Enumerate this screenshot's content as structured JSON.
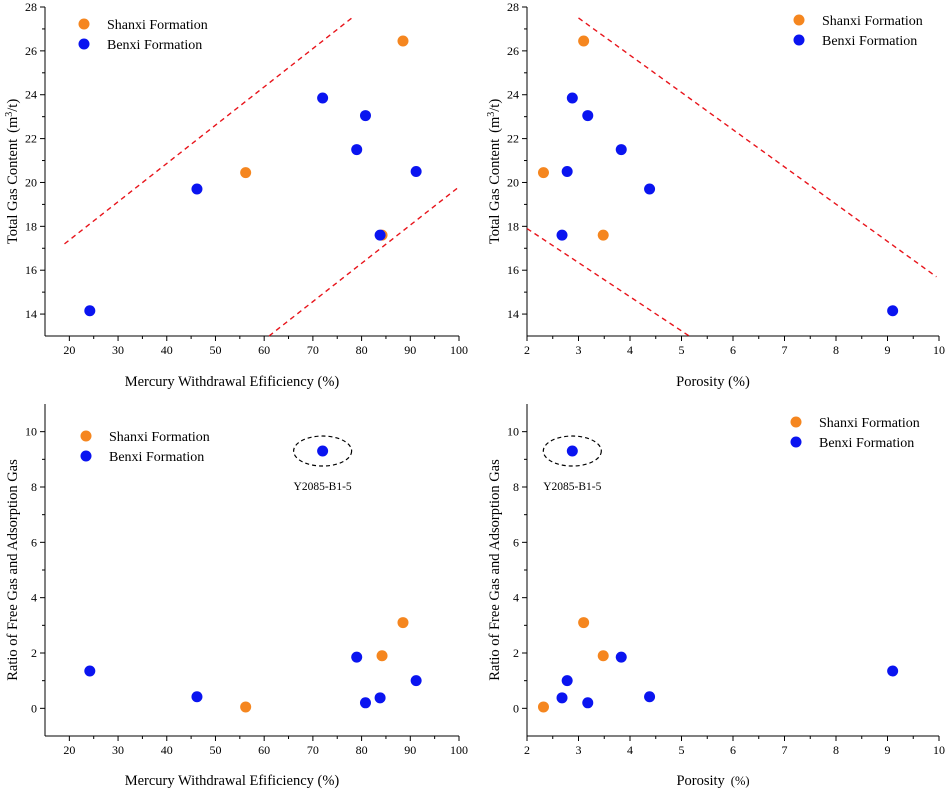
{
  "chart_data": [
    {
      "id": "tl",
      "type": "scatter",
      "xlabel": "Mercury Withdrawal Efificiency (%)",
      "ylabel": "Total Gas Content",
      "ylabel_unit_prefix": "(m",
      "ylabel_unit_exp": "3",
      "ylabel_unit_suffix": "/t)",
      "xlim": [
        15,
        100
      ],
      "ylim": [
        13,
        28
      ],
      "xticks": [
        20,
        30,
        40,
        50,
        60,
        70,
        80,
        90,
        100
      ],
      "yticks": [
        14,
        16,
        18,
        20,
        22,
        24,
        26,
        28
      ],
      "legend": "top-left",
      "series": [
        {
          "name": "Shanxi Formation",
          "color": "#f5861f",
          "points": [
            [
              88.5,
              26.45
            ],
            [
              56.2,
              20.45
            ],
            [
              84.2,
              17.6
            ]
          ]
        },
        {
          "name": "Benxi Formation",
          "color": "#0a14f0",
          "points": [
            [
              72,
              23.85
            ],
            [
              80.8,
              23.05
            ],
            [
              79,
              21.5
            ],
            [
              91.2,
              20.5
            ],
            [
              46.2,
              19.7
            ],
            [
              83.8,
              17.6
            ],
            [
              24.2,
              14.15
            ]
          ]
        }
      ],
      "trend_lines": [
        [
          [
            19,
            17.2
          ],
          [
            78,
            27.5
          ]
        ],
        [
          [
            61,
            13
          ],
          [
            100,
            19.8
          ]
        ]
      ]
    },
    {
      "id": "tr",
      "type": "scatter",
      "xlabel": "Porosity (%)",
      "ylabel": "Total Gas Content",
      "ylabel_unit_prefix": "(m",
      "ylabel_unit_exp": "3",
      "ylabel_unit_suffix": "/t)",
      "xlim": [
        2,
        10
      ],
      "ylim": [
        13,
        28
      ],
      "xticks": [
        2,
        3,
        4,
        5,
        6,
        7,
        8,
        9,
        10
      ],
      "yticks": [
        14,
        16,
        18,
        20,
        22,
        24,
        26,
        28
      ],
      "legend": "top-right",
      "series": [
        {
          "name": "Shanxi Formation",
          "color": "#f5861f",
          "points": [
            [
              3.1,
              26.45
            ],
            [
              2.32,
              20.45
            ],
            [
              3.48,
              17.6
            ]
          ]
        },
        {
          "name": "Benxi Formation",
          "color": "#0a14f0",
          "points": [
            [
              2.88,
              23.85
            ],
            [
              3.18,
              23.05
            ],
            [
              3.83,
              21.5
            ],
            [
              2.78,
              20.5
            ],
            [
              4.38,
              19.7
            ],
            [
              2.68,
              17.6
            ],
            [
              9.1,
              14.15
            ]
          ]
        }
      ],
      "trend_lines": [
        [
          [
            3.0,
            27.5
          ],
          [
            9.95,
            15.7
          ]
        ],
        [
          [
            2.0,
            17.9
          ],
          [
            5.15,
            13
          ]
        ]
      ]
    },
    {
      "id": "bl",
      "type": "scatter",
      "xlabel": "Mercury Withdrawal Efificiency (%)",
      "ylabel": "Ratio of Free Gas and Adsorption Gas",
      "xlim": [
        15,
        100
      ],
      "ylim": [
        -1,
        11
      ],
      "xticks": [
        20,
        30,
        40,
        50,
        60,
        70,
        80,
        90,
        100
      ],
      "yticks": [
        0,
        2,
        4,
        6,
        8,
        10
      ],
      "legend": "top-left",
      "series": [
        {
          "name": "Shanxi Formation",
          "color": "#f5861f",
          "points": [
            [
              88.5,
              3.1
            ],
            [
              84.2,
              1.9
            ],
            [
              56.2,
              0.05
            ]
          ]
        },
        {
          "name": "Benxi Formation",
          "color": "#0a14f0",
          "points": [
            [
              72,
              9.3
            ],
            [
              79,
              1.85
            ],
            [
              24.2,
              1.35
            ],
            [
              91.2,
              1.0
            ],
            [
              46.2,
              0.42
            ],
            [
              83.8,
              0.38
            ],
            [
              80.8,
              0.2
            ]
          ]
        }
      ],
      "annotation": {
        "label": "Y2085-B1-5",
        "x": 72,
        "y": 9.3
      }
    },
    {
      "id": "br",
      "type": "scatter",
      "xlabel": "Porosity",
      "xlabel_unit": "(%)",
      "ylabel": "Ratio of Free Gas and Adsorption Gas",
      "xlim": [
        2,
        10
      ],
      "ylim": [
        -1,
        11
      ],
      "xticks": [
        2,
        3,
        4,
        5,
        6,
        7,
        8,
        9,
        10
      ],
      "yticks": [
        0,
        2,
        4,
        6,
        8,
        10
      ],
      "legend": "top-right",
      "series": [
        {
          "name": "Shanxi Formation",
          "color": "#f5861f",
          "points": [
            [
              3.1,
              3.1
            ],
            [
              3.48,
              1.9
            ],
            [
              2.32,
              0.05
            ]
          ]
        },
        {
          "name": "Benxi Formation",
          "color": "#0a14f0",
          "points": [
            [
              2.88,
              9.3
            ],
            [
              3.83,
              1.85
            ],
            [
              9.1,
              1.35
            ],
            [
              2.78,
              1.0
            ],
            [
              4.38,
              0.42
            ],
            [
              2.68,
              0.38
            ],
            [
              3.18,
              0.2
            ]
          ]
        }
      ],
      "annotation": {
        "label": "Y2085-B1-5",
        "x": 2.88,
        "y": 9.3
      }
    }
  ]
}
